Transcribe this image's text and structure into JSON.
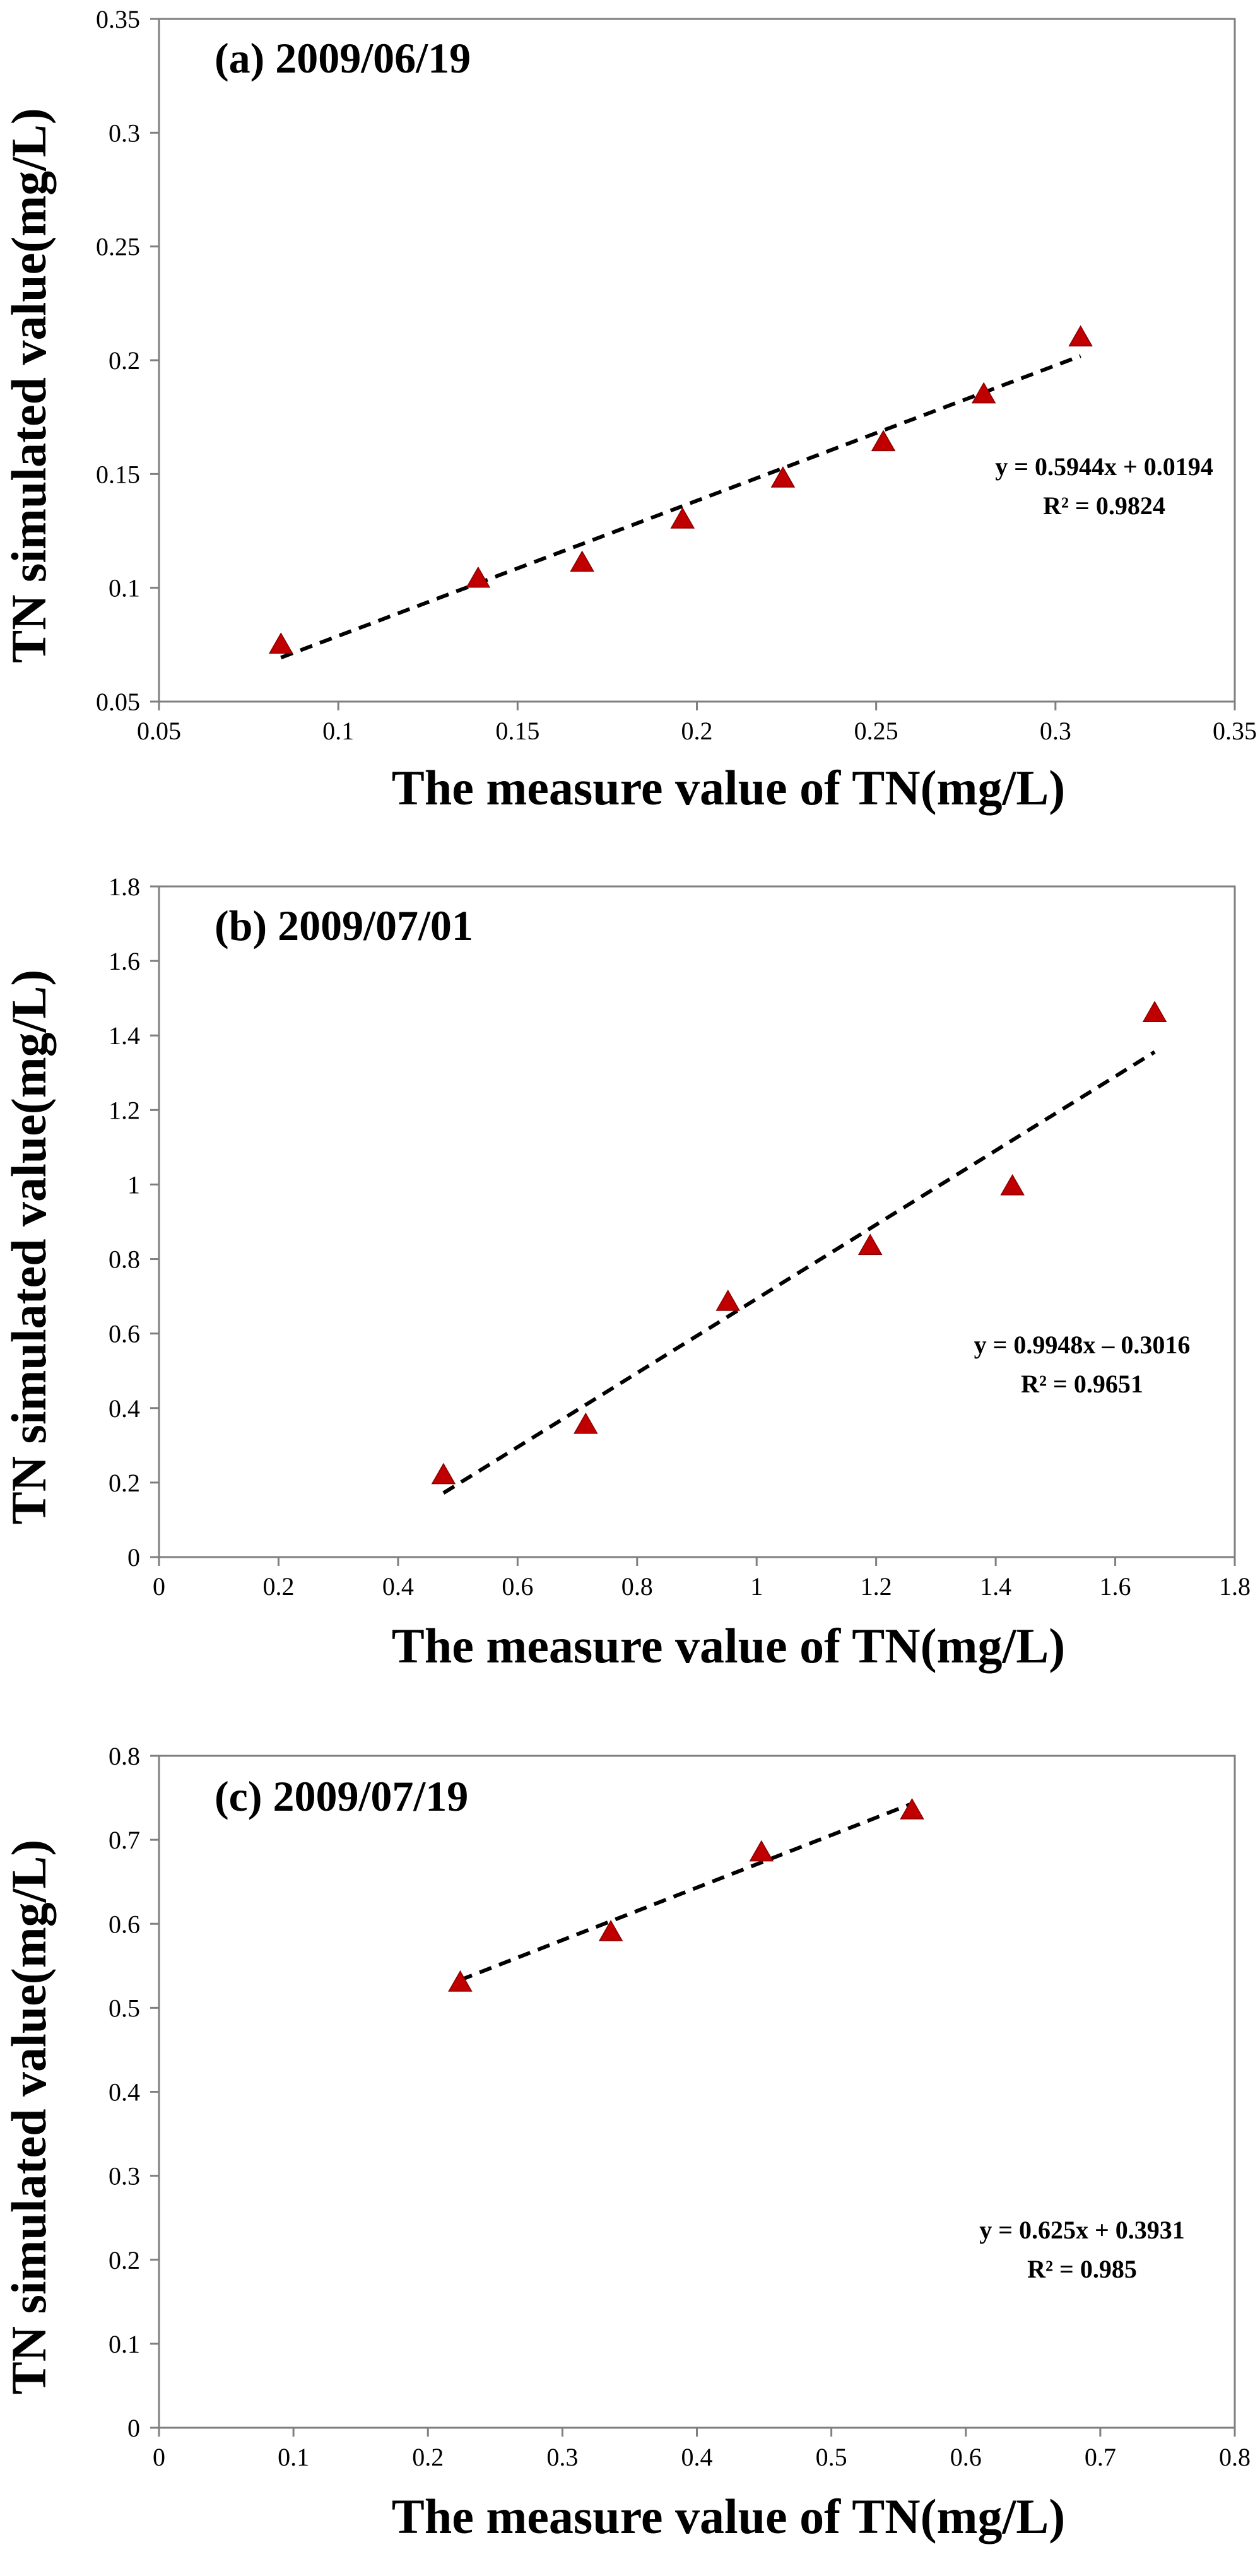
{
  "chart_data": [
    {
      "type": "scatter",
      "title": "(a) 2009/06/19",
      "xlabel": "The measure value of TN(mg/L)",
      "ylabel": "TN simulated value(mg/L)",
      "xlim": [
        0.05,
        0.35
      ],
      "ylim": [
        0.05,
        0.35
      ],
      "xticks": [
        "0.05",
        "0.1",
        "0.15",
        "0.2",
        "0.25",
        "0.3",
        "0.35"
      ],
      "yticks": [
        "0.05",
        "0.1",
        "0.15",
        "0.2",
        "0.25",
        "0.3",
        "0.35"
      ],
      "x": [
        0.084,
        0.139,
        0.168,
        0.196,
        0.224,
        0.252,
        0.28,
        0.307
      ],
      "y": [
        0.075,
        0.104,
        0.111,
        0.13,
        0.148,
        0.164,
        0.185,
        0.21
      ],
      "marker_color": "#c00000",
      "trendline": {
        "slope": 0.5944,
        "intercept": 0.0194,
        "x_range": [
          0.084,
          0.307
        ]
      },
      "equation": "y = 0.5944x + 0.0194",
      "r_squared": "R² = 0.9824",
      "grid": false
    },
    {
      "type": "scatter",
      "title": "(b) 2009/07/01",
      "xlabel": "The measure value of TN(mg/L)",
      "ylabel": "TN simulated value(mg/L)",
      "xlim": [
        0,
        1.8
      ],
      "ylim": [
        0,
        1.8
      ],
      "xticks": [
        "0",
        "0.2",
        "0.4",
        "0.6",
        "0.8",
        "1",
        "1.2",
        "1.4",
        "1.6",
        "1.8"
      ],
      "yticks": [
        "0",
        "0.2",
        "0.4",
        "0.6",
        "0.8",
        "1",
        "1.2",
        "1.4",
        "1.6",
        "1.8"
      ],
      "x": [
        0.476,
        0.714,
        0.952,
        1.19,
        1.428,
        1.666
      ],
      "y": [
        0.22,
        0.355,
        0.685,
        0.835,
        0.995,
        1.46
      ],
      "marker_color": "#c00000",
      "trendline": {
        "slope": 0.9948,
        "intercept": -0.3016,
        "x_range": [
          0.476,
          1.666
        ]
      },
      "equation": "y = 0.9948x – 0.3016",
      "r_squared": "R² = 0.9651",
      "grid": false
    },
    {
      "type": "scatter",
      "title": "(c) 2009/07/19",
      "xlabel": "The measure value of TN(mg/L)",
      "ylabel": "TN simulated value(mg/L)",
      "xlim": [
        0,
        0.8
      ],
      "ylim": [
        0,
        0.8
      ],
      "xticks": [
        "0",
        "0.1",
        "0.2",
        "0.3",
        "0.4",
        "0.5",
        "0.6",
        "0.7",
        "0.8"
      ],
      "yticks": [
        "0",
        "0.1",
        "0.2",
        "0.3",
        "0.4",
        "0.5",
        "0.6",
        "0.7",
        "0.8"
      ],
      "x": [
        0.224,
        0.336,
        0.448,
        0.56
      ],
      "y": [
        0.53,
        0.59,
        0.685,
        0.735
      ],
      "marker_color": "#c00000",
      "trendline": {
        "slope": 0.625,
        "intercept": 0.3931,
        "x_range": [
          0.224,
          0.56
        ]
      },
      "equation": "y = 0.625x + 0.3931",
      "r_squared": "R² = 0.985",
      "grid": false
    }
  ]
}
